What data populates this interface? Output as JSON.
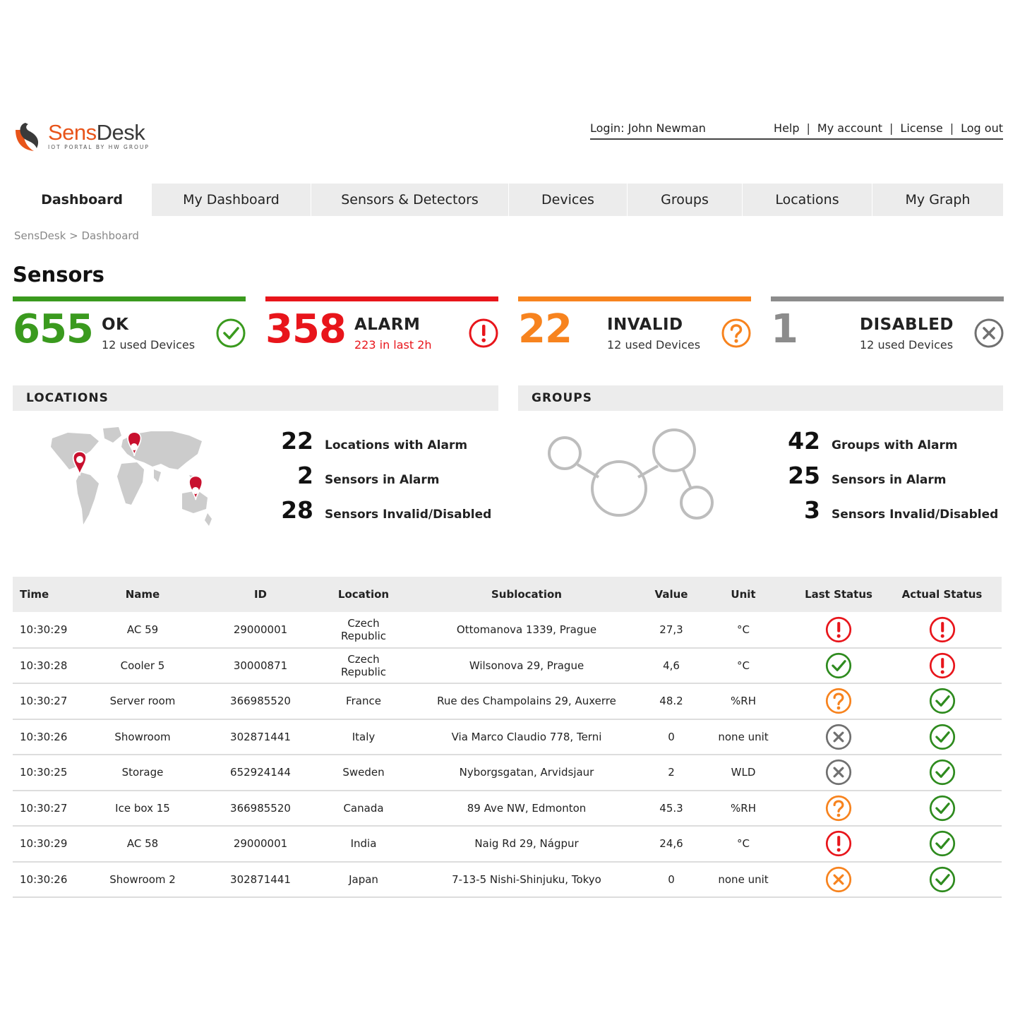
{
  "header": {
    "brand_part1": "Sens",
    "brand_part2": "Desk",
    "tagline": "IOT PORTAL BY HW GROUP",
    "login": "Login: John Newman",
    "links": [
      "Help",
      "My account",
      "License",
      "Log out"
    ]
  },
  "tabs": [
    "Dashboard",
    "My Dashboard",
    "Sensors & Detectors",
    "Devices",
    "Groups",
    "Locations",
    "My Graph"
  ],
  "active_tab": "Dashboard",
  "breadcrumb": "SensDesk > Dashboard",
  "page_title": "Sensors",
  "status_cards": {
    "ok": {
      "count": "655",
      "label": "OK",
      "sub": "12 used Devices",
      "color": "#3a9a1e",
      "icon": "check-circle-icon"
    },
    "alarm": {
      "count": "358",
      "label": "ALARM",
      "sub": "223 in last 2h",
      "color": "#e8151b",
      "icon": "exclamation-circle-icon"
    },
    "invalid": {
      "count": "22",
      "label": "INVALID",
      "sub": "12 used Devices",
      "color": "#f7831e",
      "icon": "question-circle-icon"
    },
    "disabled": {
      "count": "1",
      "label": "DISABLED",
      "sub": "12 used Devices",
      "color": "#8c8c8c",
      "icon": "x-circle-icon"
    }
  },
  "locations": {
    "title": "LOCATIONS",
    "stats": [
      {
        "value": "22",
        "label": "Locations with Alarm"
      },
      {
        "value": "2",
        "label": "Sensors in Alarm"
      },
      {
        "value": "28",
        "label": "Sensors Invalid/Disabled"
      }
    ]
  },
  "groups": {
    "title": "GROUPS",
    "stats": [
      {
        "value": "42",
        "label": "Groups with Alarm"
      },
      {
        "value": "25",
        "label": "Sensors in Alarm"
      },
      {
        "value": "3",
        "label": "Sensors Invalid/Disabled"
      }
    ]
  },
  "table": {
    "columns": [
      "Time",
      "Name",
      "ID",
      "Location",
      "Sublocation",
      "Value",
      "Unit",
      "Last Status",
      "Actual Status"
    ],
    "rows": [
      {
        "time": "10:30:29",
        "name": "AC 59",
        "id": "29000001",
        "location": "Czech Republic",
        "sublocation": "Ottomanova 1339, Prague",
        "value": "27,3",
        "unit": "°C",
        "last": "alarm",
        "actual": "alarm"
      },
      {
        "time": "10:30:28",
        "name": "Cooler 5",
        "id": "30000871",
        "location": "Czech Republic",
        "sublocation": "Wilsonova 29, Prague",
        "value": "4,6",
        "unit": "°C",
        "last": "ok",
        "actual": "alarm"
      },
      {
        "time": "10:30:27",
        "name": "Server room",
        "id": "366985520",
        "location": "France",
        "sublocation": "Rue des Champolains 29, Auxerre",
        "value": "48.2",
        "unit": "%RH",
        "last": "invalid",
        "actual": "ok"
      },
      {
        "time": "10:30:26",
        "name": "Showroom",
        "id": "302871441",
        "location": "Italy",
        "sublocation": "Via Marco Claudio 778, Terni",
        "value": "0",
        "unit": "none unit",
        "last": "disabled",
        "actual": "ok"
      },
      {
        "time": "10:30:25",
        "name": "Storage",
        "id": "652924144",
        "location": "Sweden",
        "sublocation": "Nyborgsgatan, Arvidsjaur",
        "value": "2",
        "unit": "WLD",
        "last": "disabled",
        "actual": "ok"
      },
      {
        "time": "10:30:27",
        "name": "Ice box 15",
        "id": "366985520",
        "location": "Canada",
        "sublocation": "89 Ave NW, Edmonton",
        "value": "45.3",
        "unit": "%RH",
        "last": "invalid",
        "actual": "ok"
      },
      {
        "time": "10:30:29",
        "name": "AC 58",
        "id": "29000001",
        "location": "India",
        "sublocation": "Naig Rd 29, Nágpur",
        "value": "24,6",
        "unit": "°C",
        "last": "alarm",
        "actual": "ok"
      },
      {
        "time": "10:30:26",
        "name": "Showroom 2",
        "id": "302871441",
        "location": "Japan",
        "sublocation": "7-13-5 Nishi-Shinjuku, Tokyo",
        "value": "0",
        "unit": "none unit",
        "last": "error",
        "actual": "ok"
      }
    ]
  }
}
